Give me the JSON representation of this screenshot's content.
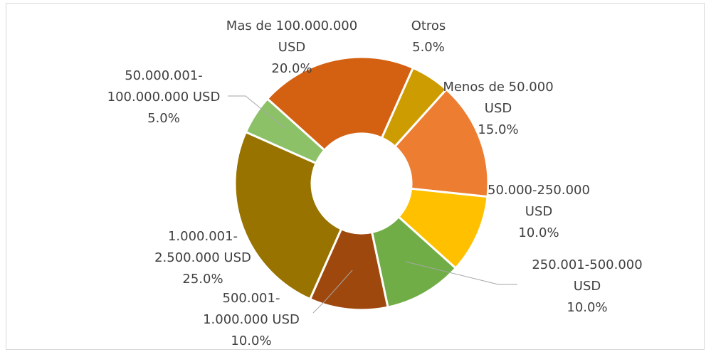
{
  "chart_data": {
    "type": "donut",
    "categories": [
      "Menos de 50.000 USD",
      "50.000-250.000 USD",
      "250.001-500.000 USD",
      "500.001-1.000.000 USD",
      "1.000.001-2.500.000 USD",
      "50.000.001-100.000.000 USD",
      "Mas de 100.000.000 USD",
      "Otros"
    ],
    "values": [
      15,
      10,
      10,
      10,
      25,
      5,
      20,
      5
    ],
    "value_labels": [
      "15.0%",
      "10.0%",
      "10.0%",
      "10.0%",
      "25.0%",
      "5.0%",
      "20.0%",
      "5.0%"
    ],
    "colors": [
      "#ed7d31",
      "#ffc000",
      "#70ad47",
      "#9e480e",
      "#997300",
      "#8cc168",
      "#d46012",
      "#cc9c00"
    ]
  }
}
